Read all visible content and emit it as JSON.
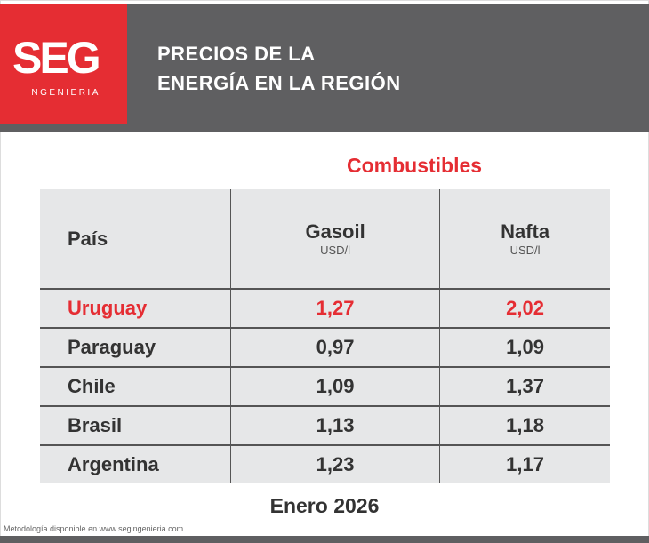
{
  "header": {
    "logo": "SEG",
    "logo_sub": "INGENIERIA",
    "title_line1": "PRECIOS DE LA",
    "title_line2": "ENERGÍA EN LA REGIÓN"
  },
  "colors": {
    "accent": "#e52d33",
    "band": "#5f5f61",
    "table_bg": "#e6e7e8"
  },
  "subtitle": "Combustibles",
  "table": {
    "headers": [
      {
        "label": "País"
      },
      {
        "label": "Gasoil",
        "unit": "USD/l"
      },
      {
        "label": "Nafta",
        "unit": "USD/l"
      }
    ],
    "rows": [
      {
        "country": "Uruguay",
        "gasoil": "1,27",
        "nafta": "2,02",
        "highlight": true
      },
      {
        "country": "Paraguay",
        "gasoil": "0,97",
        "nafta": "1,09"
      },
      {
        "country": "Chile",
        "gasoil": "1,09",
        "nafta": "1,37"
      },
      {
        "country": "Brasil",
        "gasoil": "1,13",
        "nafta": "1,18"
      },
      {
        "country": "Argentina",
        "gasoil": "1,23",
        "nafta": "1,17"
      }
    ]
  },
  "date": "Enero 2026",
  "footer": "Metodología disponible en www.segingenieria.com."
}
